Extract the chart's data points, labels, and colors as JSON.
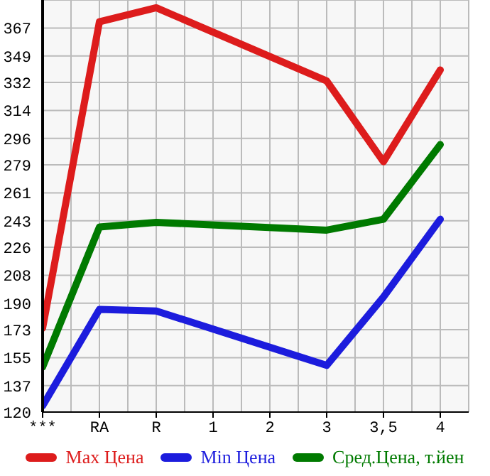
{
  "chart_data": {
    "type": "line",
    "categories": [
      "***",
      "RA",
      "R",
      "1",
      "2",
      "3",
      "3,5",
      "4"
    ],
    "series": [
      {
        "name": "Max Цена",
        "color": "#dd1c1c",
        "values": [
          174,
          371,
          380,
          null,
          null,
          333,
          281,
          340
        ]
      },
      {
        "name": "Min Цена",
        "color": "#1c1cdd",
        "values": [
          124,
          186,
          185,
          null,
          null,
          150,
          194,
          244
        ]
      },
      {
        "name": "Сред.Цена, т.йен",
        "color": "#007a00",
        "values": [
          149,
          239,
          242,
          null,
          null,
          237,
          244,
          292
        ]
      }
    ],
    "ylim": [
      120,
      385
    ],
    "yticks": [
      120,
      137,
      155,
      173,
      190,
      208,
      226,
      243,
      261,
      279,
      296,
      314,
      332,
      349,
      367
    ],
    "grid": true,
    "legend": "bottom",
    "marker": "none",
    "line_style": "solid"
  }
}
